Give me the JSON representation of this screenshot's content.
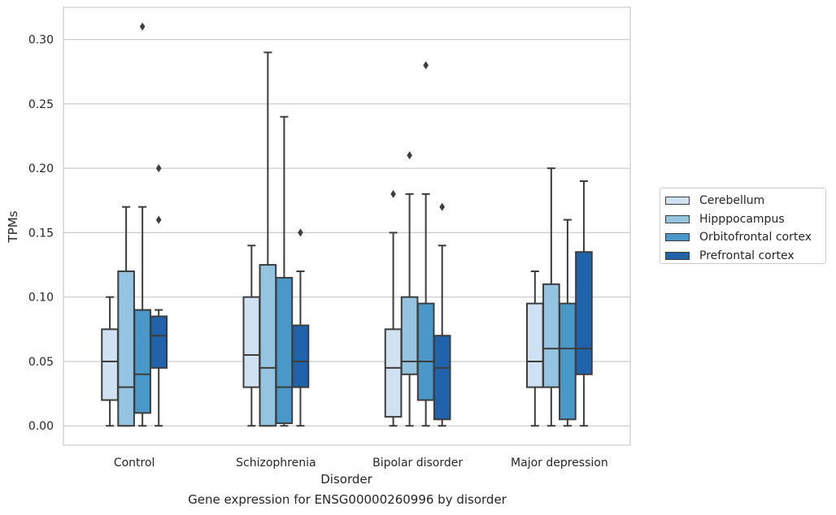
{
  "chart_data": {
    "type": "box",
    "title": "",
    "xlabel": "Disorder",
    "ylabel": "TPMs",
    "caption": "Gene expression for ENSG00000260996 by disorder",
    "ylim": [
      -0.015,
      0.325
    ],
    "yticks": [
      "0.00",
      "0.05",
      "0.10",
      "0.15",
      "0.20",
      "0.25",
      "0.30"
    ],
    "categories": [
      "Control",
      "Schizophrenia",
      "Bipolar disorder",
      "Major depression"
    ],
    "grid": "horizontal",
    "legend_position": "right",
    "series": [
      {
        "name": "Cerebellum",
        "color": "#d0e1f2",
        "boxes": [
          {
            "whisker_low": 0.0,
            "q1": 0.02,
            "median": 0.05,
            "q3": 0.075,
            "whisker_high": 0.1,
            "outliers": []
          },
          {
            "whisker_low": 0.0,
            "q1": 0.03,
            "median": 0.055,
            "q3": 0.1,
            "whisker_high": 0.14,
            "outliers": []
          },
          {
            "whisker_low": 0.0,
            "q1": 0.007,
            "median": 0.045,
            "q3": 0.075,
            "whisker_high": 0.15,
            "outliers": [
              0.18
            ]
          },
          {
            "whisker_low": 0.0,
            "q1": 0.03,
            "median": 0.05,
            "q3": 0.095,
            "whisker_high": 0.12,
            "outliers": []
          }
        ]
      },
      {
        "name": "Hipppocampus",
        "color": "#94c4df",
        "boxes": [
          {
            "whisker_low": 0.0,
            "q1": 0.0,
            "median": 0.03,
            "q3": 0.12,
            "whisker_high": 0.17,
            "outliers": []
          },
          {
            "whisker_low": 0.0,
            "q1": 0.0,
            "median": 0.045,
            "q3": 0.125,
            "whisker_high": 0.29,
            "outliers": []
          },
          {
            "whisker_low": 0.0,
            "q1": 0.04,
            "median": 0.05,
            "q3": 0.1,
            "whisker_high": 0.18,
            "outliers": [
              0.21
            ]
          },
          {
            "whisker_low": 0.0,
            "q1": 0.03,
            "median": 0.06,
            "q3": 0.11,
            "whisker_high": 0.2,
            "outliers": []
          }
        ]
      },
      {
        "name": "Orbitofrontal cortex",
        "color": "#4a98c9",
        "boxes": [
          {
            "whisker_low": 0.0,
            "q1": 0.01,
            "median": 0.04,
            "q3": 0.09,
            "whisker_high": 0.17,
            "outliers": [
              0.31
            ]
          },
          {
            "whisker_low": 0.0,
            "q1": 0.002,
            "median": 0.03,
            "q3": 0.115,
            "whisker_high": 0.24,
            "outliers": []
          },
          {
            "whisker_low": 0.0,
            "q1": 0.02,
            "median": 0.05,
            "q3": 0.095,
            "whisker_high": 0.18,
            "outliers": [
              0.28
            ]
          },
          {
            "whisker_low": 0.0,
            "q1": 0.005,
            "median": 0.06,
            "q3": 0.095,
            "whisker_high": 0.16,
            "outliers": []
          }
        ]
      },
      {
        "name": "Prefrontal cortex",
        "color": "#2163aa",
        "boxes": [
          {
            "whisker_low": 0.0,
            "q1": 0.045,
            "median": 0.07,
            "q3": 0.085,
            "whisker_high": 0.09,
            "outliers": [
              0.2,
              0.16
            ]
          },
          {
            "whisker_low": 0.0,
            "q1": 0.03,
            "median": 0.05,
            "q3": 0.078,
            "whisker_high": 0.12,
            "outliers": [
              0.15
            ]
          },
          {
            "whisker_low": 0.0,
            "q1": 0.005,
            "median": 0.045,
            "q3": 0.07,
            "whisker_high": 0.14,
            "outliers": [
              0.17
            ]
          },
          {
            "whisker_low": 0.0,
            "q1": 0.04,
            "median": 0.06,
            "q3": 0.135,
            "whisker_high": 0.19,
            "outliers": []
          }
        ]
      }
    ]
  }
}
